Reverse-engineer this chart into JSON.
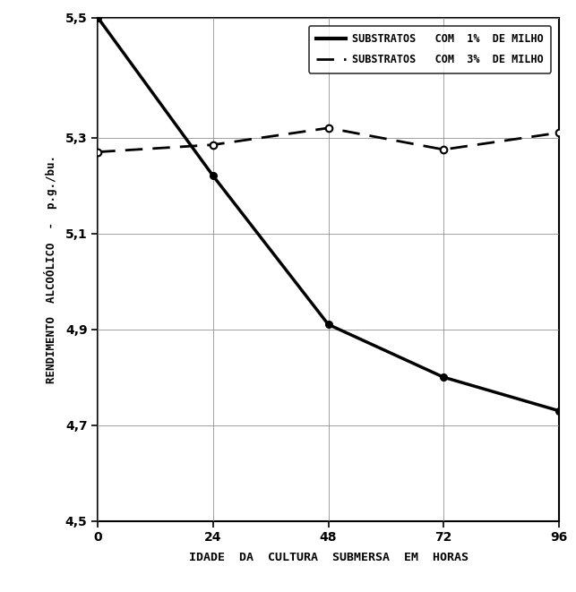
{
  "x_ticks": [
    0,
    24,
    48,
    72,
    96
  ],
  "xlabel": "IDADE  DA  CULTURA  SUBMERSA  EM  HORAS",
  "ylabel": "RENDIMENTO  ALCOÓLICO  -  p.g./bu.",
  "ylim": [
    4.5,
    5.55
  ],
  "xlim": [
    0,
    96
  ],
  "ytick_positions": [
    4.5,
    4.7,
    4.9,
    5.1,
    5.3,
    5.55
  ],
  "ytick_labels": [
    "4,5",
    "4,7",
    "4,9",
    "5,1",
    "5,3",
    "5,5"
  ],
  "line1_x": [
    0,
    24,
    48,
    72,
    96
  ],
  "line1_y": [
    5.55,
    5.22,
    4.91,
    4.8,
    4.73
  ],
  "line1_label": "SUBSTRATOS   COM  1%  DE MILHO",
  "line2_x": [
    0,
    24,
    48,
    72,
    96
  ],
  "line2_y": [
    5.27,
    5.285,
    5.32,
    5.275,
    5.31
  ],
  "line2_label": "SUBSTRATOS   COM  3%  DE MILHO",
  "grid_color": "#888888",
  "background_color": "#ffffff",
  "line_color": "#000000"
}
